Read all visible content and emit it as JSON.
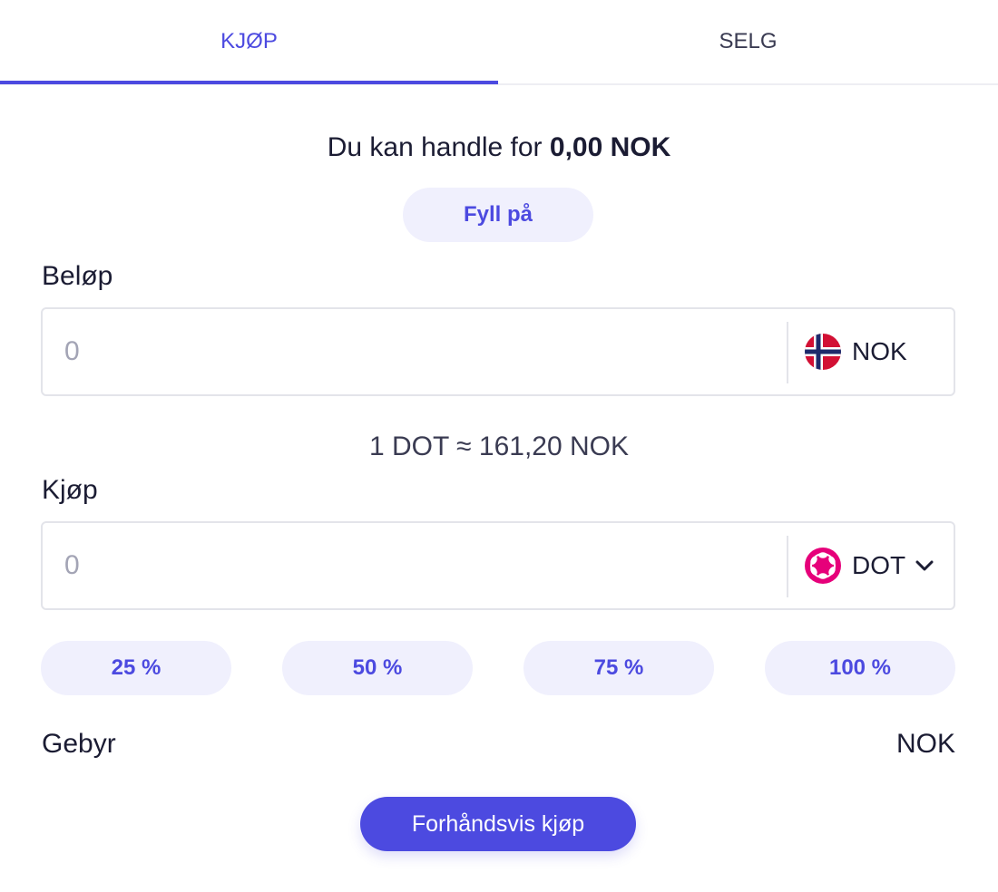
{
  "tabs": {
    "buy": "KJØP",
    "sell": "SELG",
    "active": "buy"
  },
  "balance": {
    "prefix": "Du kan handle for",
    "amount": "0,00 NOK"
  },
  "fill_button": "Fyll på",
  "amount_field": {
    "label": "Beløp",
    "placeholder": "0",
    "currency": "NOK",
    "currency_icon": "norway-flag-icon"
  },
  "rate": "1 DOT ≈ 161,20 NOK",
  "buy_field": {
    "label": "Kjøp",
    "placeholder": "0",
    "currency": "DOT",
    "currency_icon": "polkadot-icon"
  },
  "percent_buttons": [
    "25 %",
    "50 %",
    "75 %",
    "100 %"
  ],
  "fee": {
    "label": "Gebyr",
    "value": "NOK"
  },
  "preview_button": "Forhåndsvis kjøp",
  "colors": {
    "accent": "#4c4ae0",
    "accent_soft": "#f0f0fd",
    "dot_pink": "#e6007a"
  }
}
